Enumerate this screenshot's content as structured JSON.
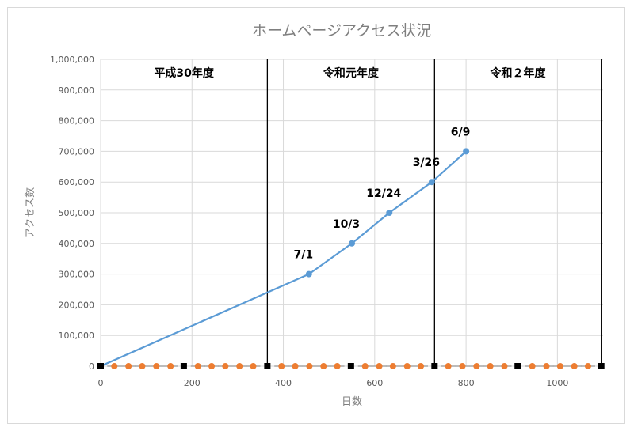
{
  "chart_data": {
    "type": "scatter",
    "title": "ホームページアクセス状況",
    "xlabel": "日数",
    "ylabel": "アクセス数",
    "xlim": [
      0,
      1100
    ],
    "ylim": [
      0,
      1000000
    ],
    "x_ticks": [
      "0",
      "200",
      "400",
      "600",
      "800",
      "1000"
    ],
    "y_ticks": [
      "0",
      "100,000",
      "200,000",
      "300,000",
      "400,000",
      "500,000",
      "600,000",
      "700,000",
      "800,000",
      "900,000",
      "1,000,000"
    ],
    "grid": true,
    "legend": "none",
    "period_labels": [
      {
        "text": "平成30年度",
        "start": 0,
        "end": 365
      },
      {
        "text": "令和元年度",
        "start": 365,
        "end": 731
      },
      {
        "text": "令和２年度",
        "start": 731,
        "end": 1096
      }
    ],
    "dividers": [
      365,
      731,
      1096
    ],
    "series": [
      {
        "color": "#5b9bd5",
        "points": [
          {
            "x": 0,
            "y": 0,
            "label": ""
          },
          {
            "x": 456,
            "y": 300000,
            "label": "7/1"
          },
          {
            "x": 550,
            "y": 400000,
            "label": "10/3"
          },
          {
            "x": 632,
            "y": 500000,
            "label": "12/24"
          },
          {
            "x": 725,
            "y": 600000,
            "label": "3/26"
          },
          {
            "x": 800,
            "y": 700000,
            "label": "6/9"
          }
        ]
      },
      {
        "color": "#ed7d31",
        "x": [
          30,
          61,
          91,
          122,
          153,
          213,
          243,
          273,
          304,
          334,
          396,
          426,
          457,
          488,
          518,
          579,
          610,
          640,
          671,
          701,
          761,
          792,
          823,
          853,
          884,
          945,
          976,
          1006,
          1037,
          1067
        ],
        "y": [
          0,
          0,
          0,
          0,
          0,
          0,
          0,
          0,
          0,
          0,
          0,
          0,
          0,
          0,
          0,
          0,
          0,
          0,
          0,
          0,
          0,
          0,
          0,
          0,
          0,
          0,
          0,
          0,
          0,
          0
        ]
      },
      {
        "color": "#000000",
        "x": [
          0,
          182,
          365,
          548,
          731,
          913,
          1096
        ],
        "y": [
          0,
          0,
          0,
          0,
          0,
          0,
          0
        ]
      }
    ]
  }
}
